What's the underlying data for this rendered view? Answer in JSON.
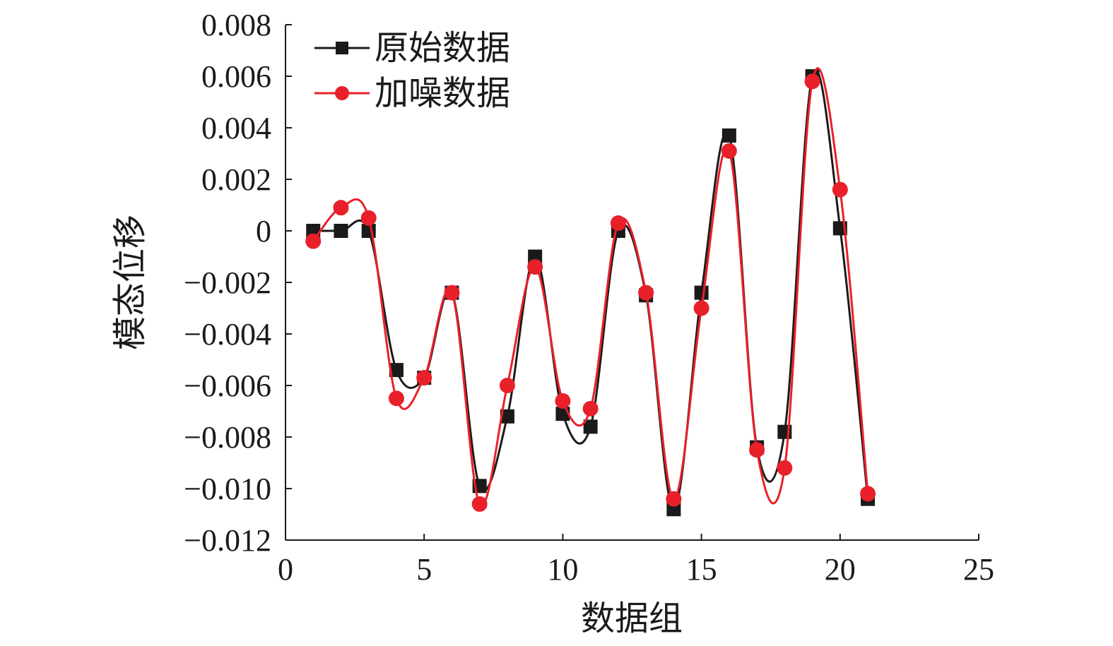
{
  "chart_data": {
    "type": "line",
    "title": "",
    "xlabel": "数据组",
    "ylabel": "模态位移",
    "xlim": [
      0,
      25
    ],
    "ylim": [
      -0.012,
      0.008
    ],
    "x_ticks": [
      "0",
      "5",
      "10",
      "15",
      "20",
      "25"
    ],
    "y_ticks": [
      "0.008",
      "0.006",
      "0.004",
      "0.002",
      "0",
      "−0.002",
      "−0.004",
      "−0.006",
      "−0.008",
      "−0.010",
      "−0.012"
    ],
    "grid": false,
    "legend_position": "top-left",
    "x": [
      1,
      2,
      3,
      4,
      5,
      6,
      7,
      8,
      9,
      10,
      11,
      12,
      13,
      14,
      15,
      16,
      17,
      18,
      19,
      20,
      21
    ],
    "series": [
      {
        "name": "原始数据",
        "color": "#1a1a1a",
        "marker": "square",
        "values": [
          0.0,
          0.0,
          0.0,
          -0.0054,
          -0.0057,
          -0.0024,
          -0.0099,
          -0.0072,
          -0.001,
          -0.0071,
          -0.0076,
          0.0,
          -0.0025,
          -0.0108,
          -0.0024,
          0.0037,
          -0.0084,
          -0.0078,
          0.006,
          0.0001,
          -0.0104
        ]
      },
      {
        "name": "加噪数据",
        "color": "#e8202a",
        "marker": "circle",
        "values": [
          -0.0004,
          0.0009,
          0.0005,
          -0.0065,
          -0.0057,
          -0.0024,
          -0.0106,
          -0.006,
          -0.0014,
          -0.0066,
          -0.0069,
          0.0003,
          -0.0024,
          -0.0104,
          -0.003,
          0.0031,
          -0.0085,
          -0.0092,
          0.0058,
          0.0016,
          -0.0102
        ]
      }
    ]
  }
}
